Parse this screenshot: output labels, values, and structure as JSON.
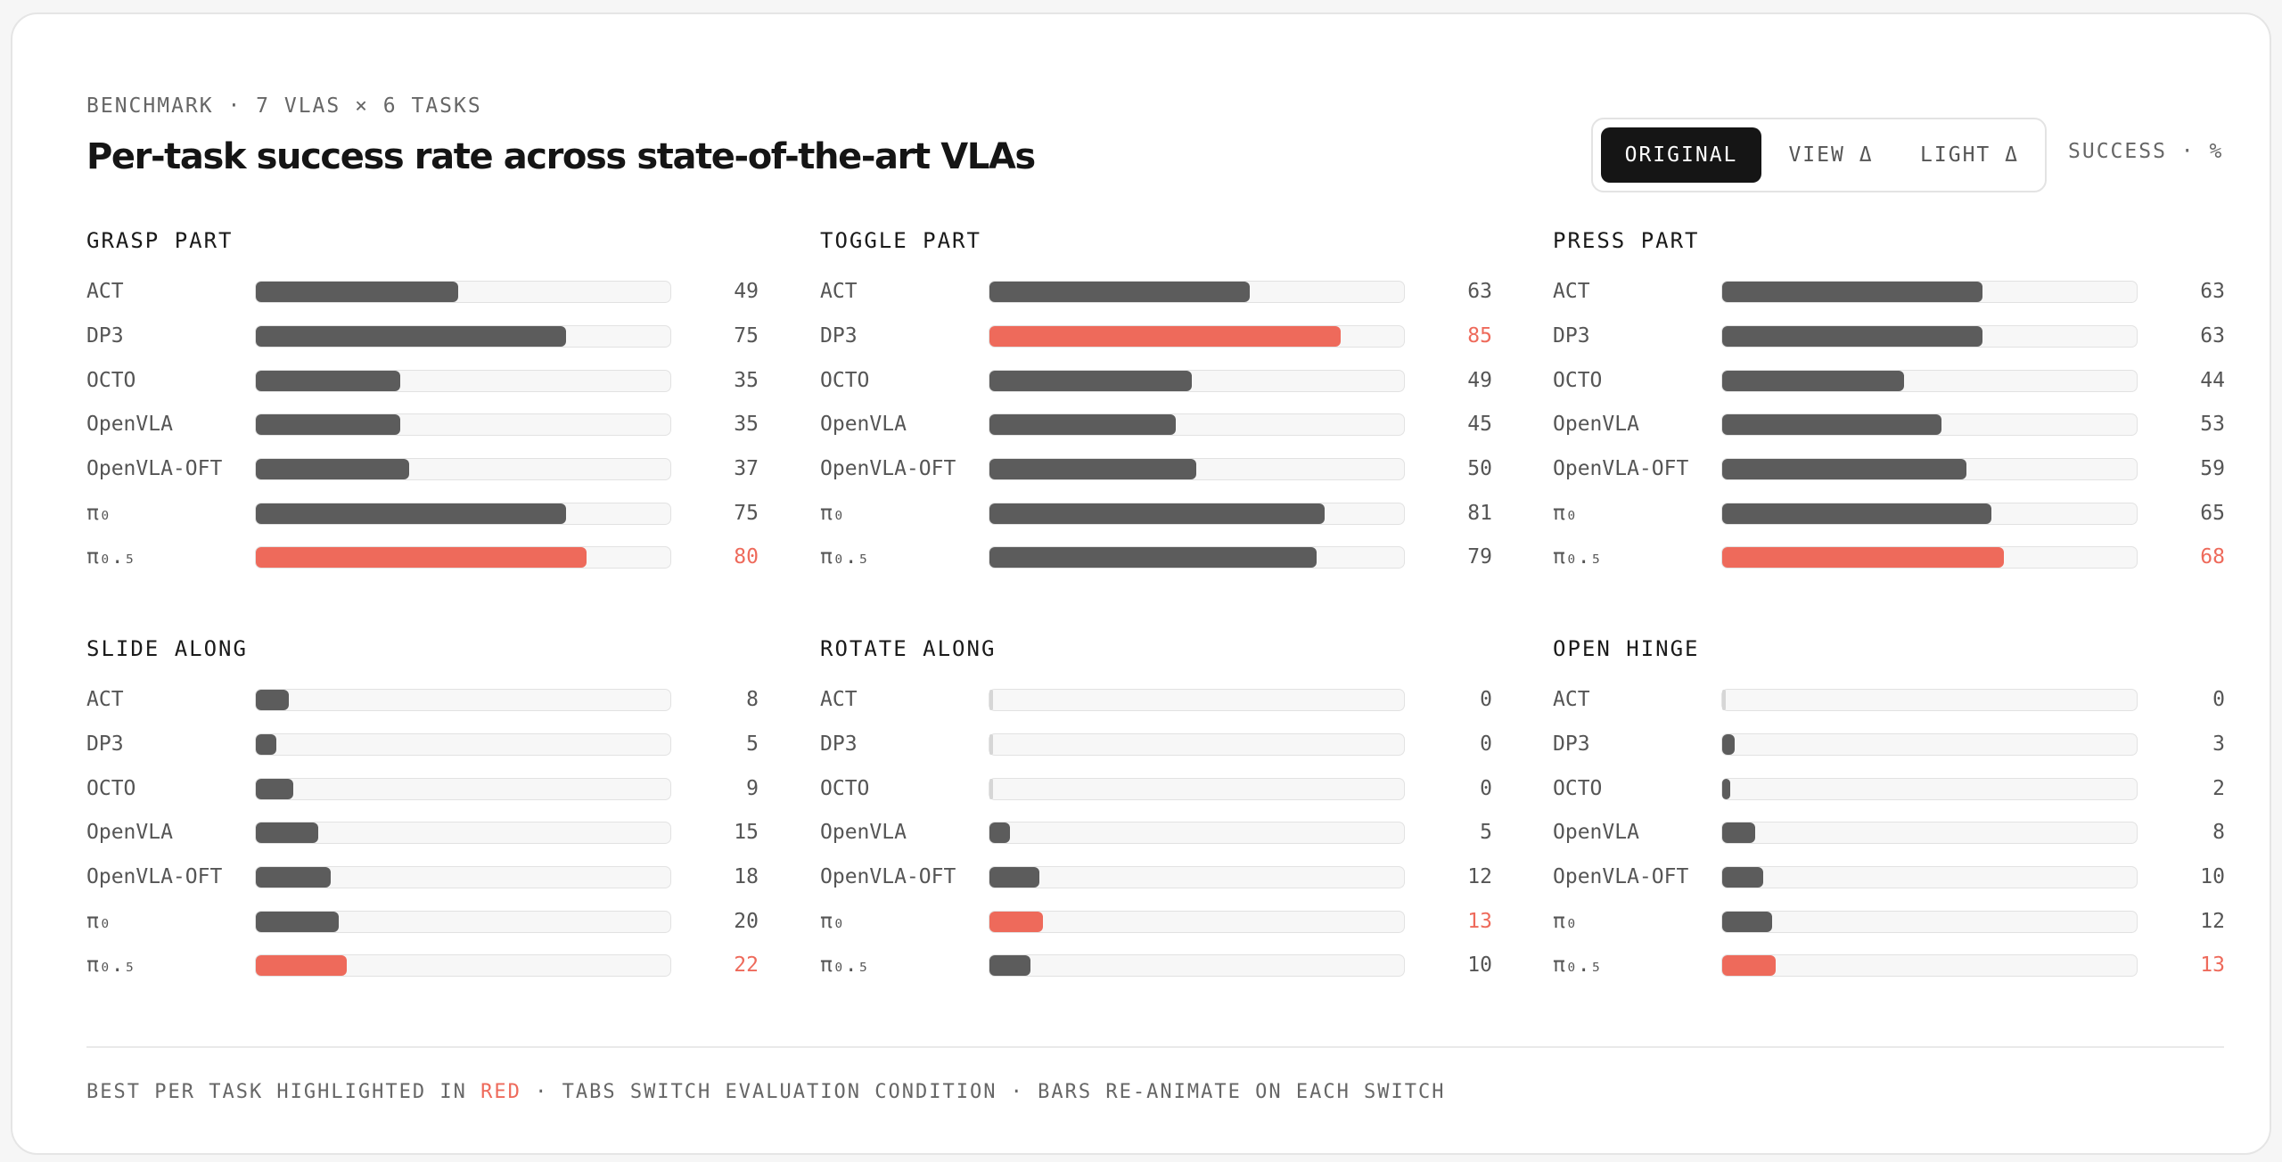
{
  "header": {
    "eyebrow": "BENCHMARK · 7 VLAS × 6 TASKS",
    "title": "Per-task success rate across state-of-the-art VLAs",
    "tabs": [
      "ORIGINAL",
      "VIEW Δ",
      "LIGHT Δ"
    ],
    "active_tab": "ORIGINAL",
    "units": "SUCCESS · %"
  },
  "footer": {
    "note_before": "BEST PER TASK HIGHLIGHTED IN ",
    "note_highlight": "RED",
    "note_after": " · TABS SWITCH EVALUATION CONDITION · BARS RE-ANIMATE ON EACH SWITCH"
  },
  "colors": {
    "bar": "#5c5c5c",
    "best": "#ee6a5b",
    "track": "#f7f7f7"
  },
  "chart_data": {
    "type": "bar",
    "orientation": "horizontal",
    "xlim": [
      0,
      100
    ],
    "models": [
      "ACT",
      "DP3",
      "OCTO",
      "OpenVLA",
      "OpenVLA-OFT",
      "π₀",
      "π₀.₅"
    ],
    "panels": [
      {
        "title": "GRASP PART",
        "values": [
          49,
          75,
          35,
          35,
          37,
          75,
          80
        ],
        "best_index": 6
      },
      {
        "title": "TOGGLE PART",
        "values": [
          63,
          85,
          49,
          45,
          50,
          81,
          79
        ],
        "best_index": 1
      },
      {
        "title": "PRESS PART",
        "values": [
          63,
          63,
          44,
          53,
          59,
          65,
          68
        ],
        "best_index": 6
      },
      {
        "title": "SLIDE ALONG",
        "values": [
          8,
          5,
          9,
          15,
          18,
          20,
          22
        ],
        "best_index": 6
      },
      {
        "title": "ROTATE ALONG",
        "values": [
          0,
          0,
          0,
          5,
          12,
          13,
          10
        ],
        "best_index": 5
      },
      {
        "title": "OPEN HINGE",
        "values": [
          0,
          3,
          2,
          8,
          10,
          12,
          13
        ],
        "best_index": 6
      }
    ]
  }
}
